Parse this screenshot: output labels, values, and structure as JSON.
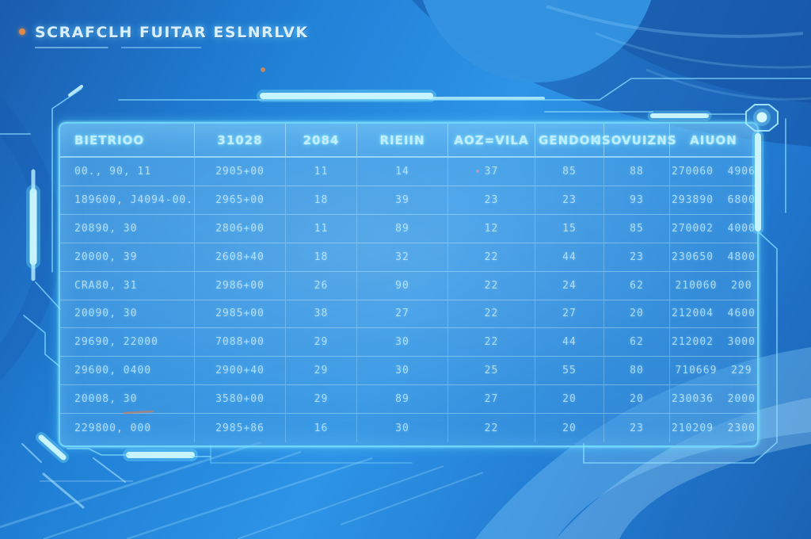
{
  "title": {
    "text": "SCRAFCLH FUITAR ESLNRLVK",
    "bullet_icon": "orange-dot"
  },
  "colors": {
    "accent": "#6fd9ff",
    "accent_bright": "#c9f6ff",
    "background_base": "#2186dc",
    "panel_blue": "#3f9fe6",
    "header_text": "#bfeeff",
    "body_text": "#d4f2ff",
    "orange_speck": "#e0823f"
  },
  "table": {
    "headers": [
      "BIETRIOO",
      "31028",
      "2084",
      "RIEIIN",
      "AOZ=VILA",
      "GENDOK",
      "ISOVUIZNS",
      "AIUON"
    ],
    "rows": [
      [
        "00., 90, 11",
        "2905+00",
        "11",
        "14",
        "37",
        "85",
        "88",
        "270060  4906"
      ],
      [
        "189600, J4094-00.",
        "2965+00",
        "18",
        "39",
        "23",
        "23",
        "93",
        "293890  6800"
      ],
      [
        "20890, 30",
        "2806+00",
        "11",
        "89",
        "12",
        "15",
        "85",
        "270002  4000"
      ],
      [
        "20000, 39",
        "2608+40",
        "18",
        "32",
        "22",
        "44",
        "23",
        "230650  4800"
      ],
      [
        "CRA80, 31",
        "2986+00",
        "26",
        "90",
        "22",
        "24",
        "62",
        "210060  200"
      ],
      [
        "20090, 30",
        "2985+00",
        "38",
        "27",
        "22",
        "27",
        "20",
        "212004  4600"
      ],
      [
        "29690, 22000",
        "7088+00",
        "29",
        "30",
        "22",
        "44",
        "62",
        "212002  3000"
      ],
      [
        "29600, 0400",
        "2900+40",
        "29",
        "30",
        "25",
        "55",
        "80",
        "710669  229"
      ],
      [
        "20008, 30",
        "3580+00",
        "29",
        "89",
        "27",
        "20",
        "20",
        "230036  2000"
      ],
      [
        "229800, 000",
        "2985+86",
        "16",
        "30",
        "22",
        "20",
        "23",
        "210209  2300"
      ]
    ]
  }
}
